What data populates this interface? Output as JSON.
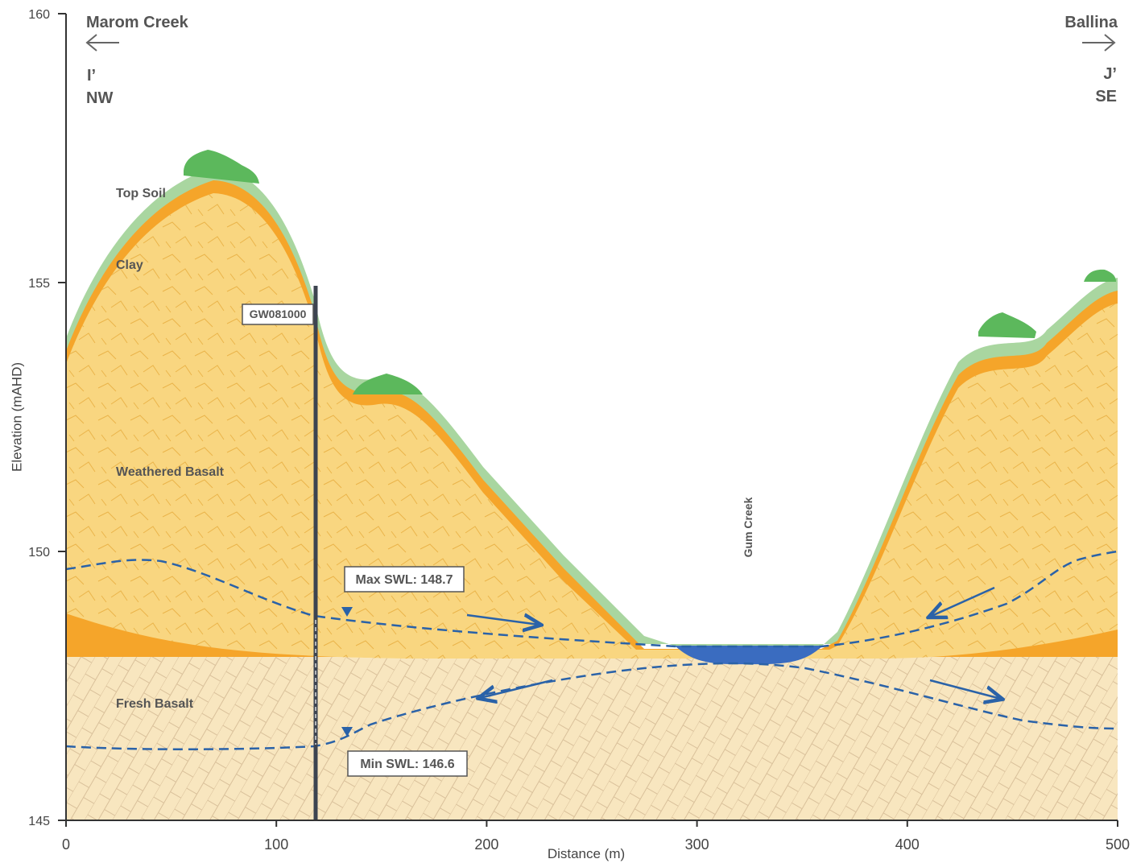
{
  "axes": {
    "x_label": "Distance (m)",
    "y_label": "Elevation (mAHD)",
    "xlim": [
      0,
      500
    ],
    "ylim": [
      145,
      160
    ],
    "xticks": [
      0,
      100,
      200,
      300,
      400,
      500
    ],
    "yticks": [
      145,
      150,
      155,
      160
    ]
  },
  "direction": {
    "left_place": "Marom Creek",
    "left_section": "I’",
    "left_bearing": "NW",
    "right_place": "Ballina",
    "right_section": "J’",
    "right_bearing": "SE"
  },
  "layers": [
    "Top Soil",
    "Clay",
    "Weathered Basalt",
    "Fresh Basalt"
  ],
  "bore": {
    "id": "GW081000"
  },
  "water_levels": {
    "max": "Max SWL: 148.7",
    "min": "Min SWL: 146.6"
  },
  "creek": "Gum Creek"
}
